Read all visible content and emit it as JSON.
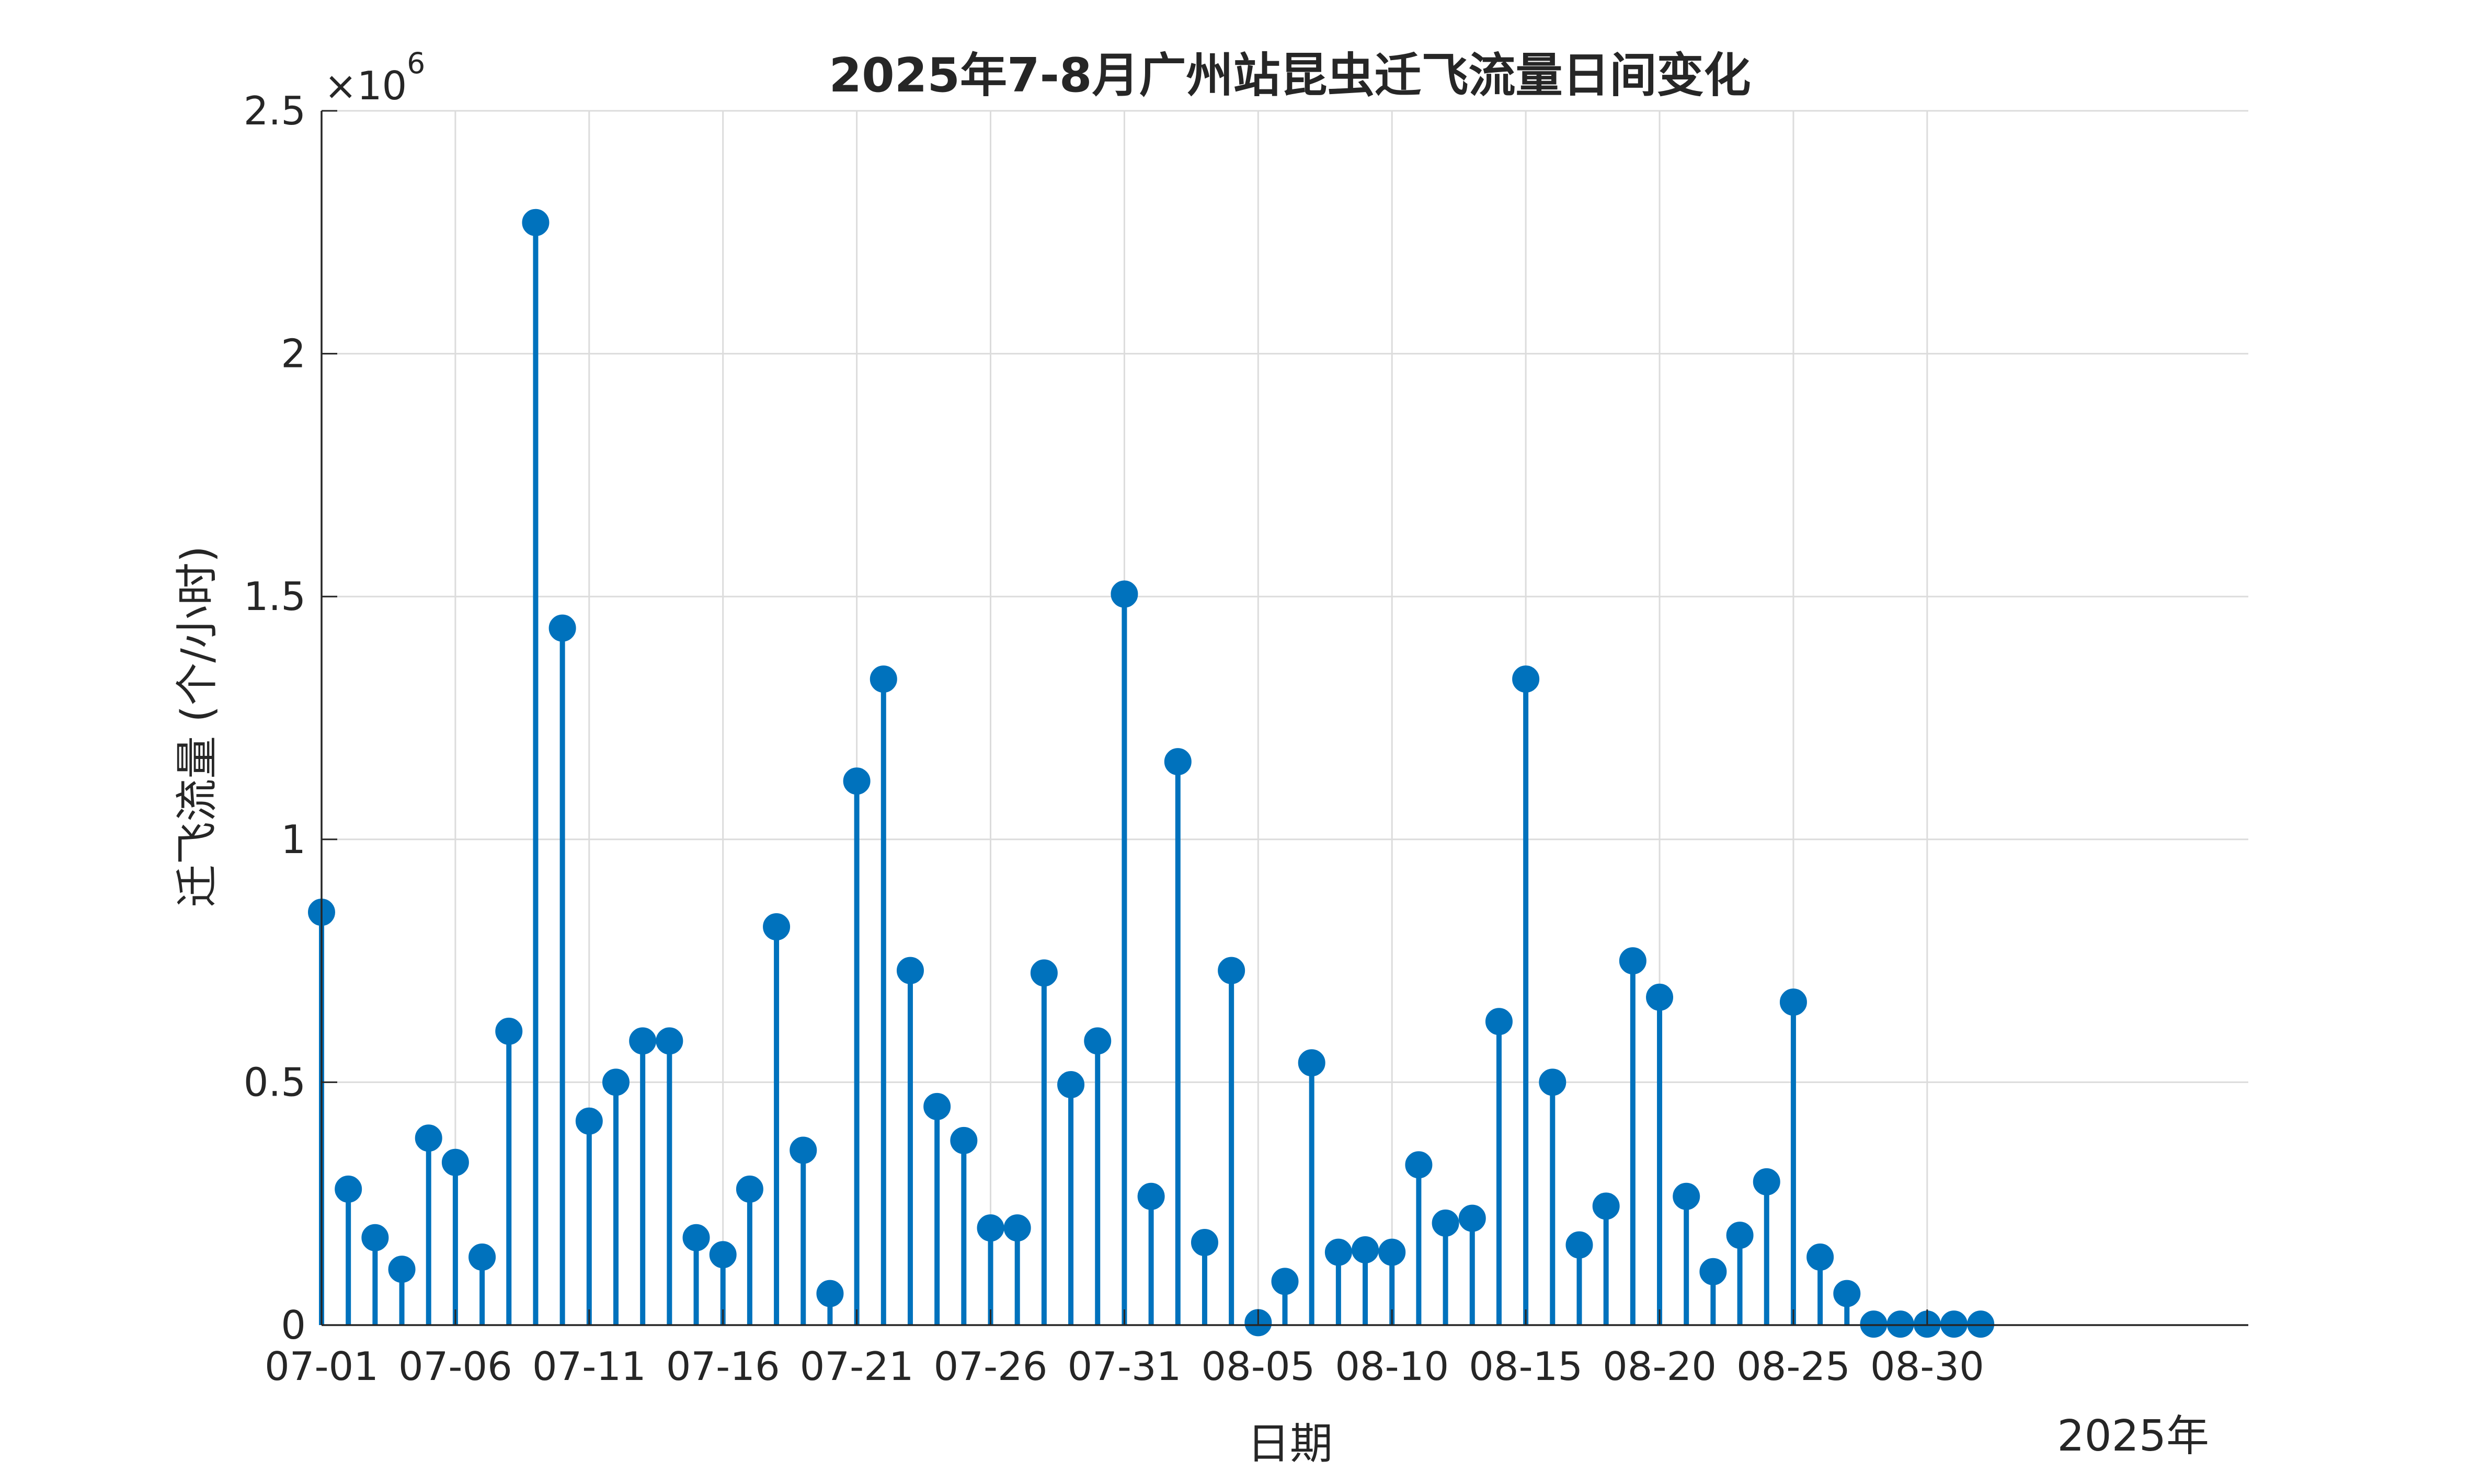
{
  "chart_data": {
    "type": "stem",
    "title": "2025年7-8月广州站昆虫迁飞流量日间变化",
    "xlabel": "日期",
    "ylabel": "迁飞流量 (个/小时)",
    "y_exponent_label": "×10",
    "y_exponent_power": "6",
    "x_secondary_label": "2025年",
    "grid": true,
    "series_color": "#0072BD",
    "ylim": [
      0,
      2500000
    ],
    "xlim": [
      "2025-07-01",
      "2025-09-11"
    ],
    "ytick_values": [
      0,
      500000,
      1000000,
      1500000,
      2000000,
      2500000
    ],
    "ytick_labels": [
      "0",
      "0.5",
      "1",
      "1.5",
      "2",
      "2.5"
    ],
    "xtick_dates": [
      "2025-07-01",
      "2025-07-06",
      "2025-07-11",
      "2025-07-16",
      "2025-07-21",
      "2025-07-26",
      "2025-07-31",
      "2025-08-05",
      "2025-08-10",
      "2025-08-15",
      "2025-08-20",
      "2025-08-25",
      "2025-08-30"
    ],
    "xtick_labels": [
      "07-01",
      "07-06",
      "07-11",
      "07-16",
      "07-21",
      "07-26",
      "07-31",
      "08-05",
      "08-10",
      "08-15",
      "08-20",
      "08-25",
      "08-30"
    ],
    "x": [
      "2025-07-01",
      "2025-07-02",
      "2025-07-03",
      "2025-07-04",
      "2025-07-05",
      "2025-07-06",
      "2025-07-07",
      "2025-07-08",
      "2025-07-09",
      "2025-07-10",
      "2025-07-11",
      "2025-07-12",
      "2025-07-13",
      "2025-07-14",
      "2025-07-15",
      "2025-07-16",
      "2025-07-17",
      "2025-07-18",
      "2025-07-19",
      "2025-07-20",
      "2025-07-21",
      "2025-07-22",
      "2025-07-23",
      "2025-07-24",
      "2025-07-25",
      "2025-07-26",
      "2025-07-27",
      "2025-07-28",
      "2025-07-29",
      "2025-07-30",
      "2025-07-31",
      "2025-08-01",
      "2025-08-02",
      "2025-08-03",
      "2025-08-04",
      "2025-08-05",
      "2025-08-06",
      "2025-08-07",
      "2025-08-08",
      "2025-08-09",
      "2025-08-10",
      "2025-08-11",
      "2025-08-12",
      "2025-08-13",
      "2025-08-14",
      "2025-08-15",
      "2025-08-16",
      "2025-08-17",
      "2025-08-18",
      "2025-08-19",
      "2025-08-20",
      "2025-08-21",
      "2025-08-22",
      "2025-08-23",
      "2025-08-24",
      "2025-08-25",
      "2025-08-26",
      "2025-08-27",
      "2025-08-28",
      "2025-08-29",
      "2025-08-30",
      "2025-08-31",
      "2025-09-01"
    ],
    "values": [
      850000,
      280000,
      180000,
      115000,
      385000,
      335000,
      140000,
      605000,
      2270000,
      1435000,
      420000,
      500000,
      585000,
      585000,
      180000,
      145000,
      280000,
      820000,
      360000,
      65000,
      1120000,
      1330000,
      730000,
      450000,
      380000,
      200000,
      200000,
      725000,
      495000,
      585000,
      1505000,
      265000,
      1160000,
      170000,
      730000,
      5000,
      90000,
      540000,
      150000,
      155000,
      150000,
      330000,
      210000,
      220000,
      625000,
      1330000,
      500000,
      165000,
      245000,
      750000,
      675000,
      265000,
      110000,
      185000,
      295000,
      665000,
      140000,
      65000,
      2000,
      2000,
      2000,
      2000,
      2000
    ]
  }
}
